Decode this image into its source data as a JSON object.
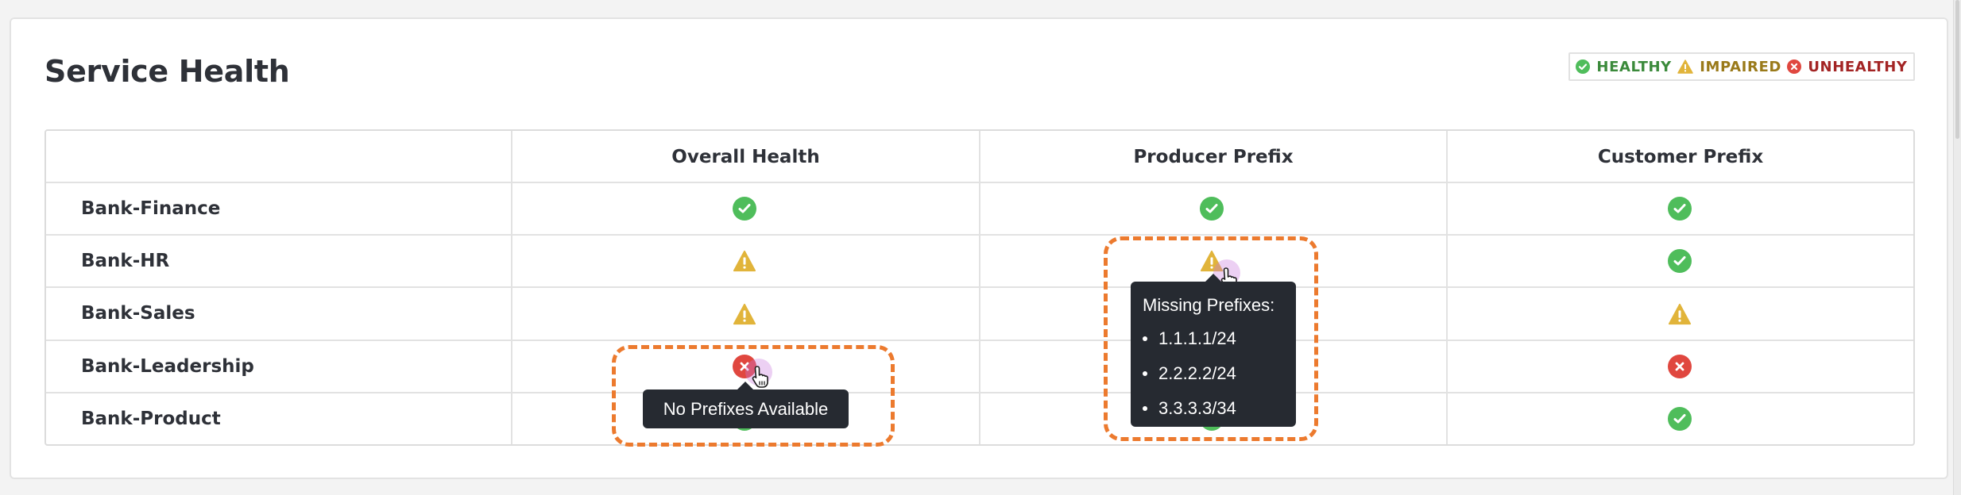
{
  "page": {
    "title": "Service Health"
  },
  "legend": {
    "healthy": "HEALTHY",
    "impaired": "IMPAIRED",
    "unhealthy": "UNHEALTHY",
    "colors": {
      "healthy": "#4fbd5b",
      "impaired": "#e1b43a",
      "unhealthy": "#e0473f"
    }
  },
  "table": {
    "columns": [
      "Overall Health",
      "Producer Prefix",
      "Customer Prefix"
    ],
    "rows": [
      {
        "name": "Bank-Finance",
        "statuses": [
          "healthy",
          "healthy",
          "healthy"
        ]
      },
      {
        "name": "Bank-HR",
        "statuses": [
          "impaired",
          "impaired",
          "healthy"
        ]
      },
      {
        "name": "Bank-Sales",
        "statuses": [
          "impaired",
          "",
          "impaired"
        ]
      },
      {
        "name": "Bank-Leadership",
        "statuses": [
          "unhealthy",
          "",
          "unhealthy"
        ]
      },
      {
        "name": "Bank-Product",
        "statuses": [
          "healthy",
          "healthy",
          "healthy"
        ]
      }
    ]
  },
  "tooltips": {
    "no_prefixes": {
      "text": "No Prefixes Available"
    },
    "missing_prefixes": {
      "title": "Missing Prefixes:",
      "items": [
        "1.1.1.1/24",
        "2.2.2.2/24",
        "3.3.3.3/34"
      ]
    }
  },
  "icons": {
    "healthy": "check-circle-icon",
    "impaired": "warning-triangle-icon",
    "unhealthy": "x-circle-icon",
    "cursor": "hand-pointer-icon"
  }
}
